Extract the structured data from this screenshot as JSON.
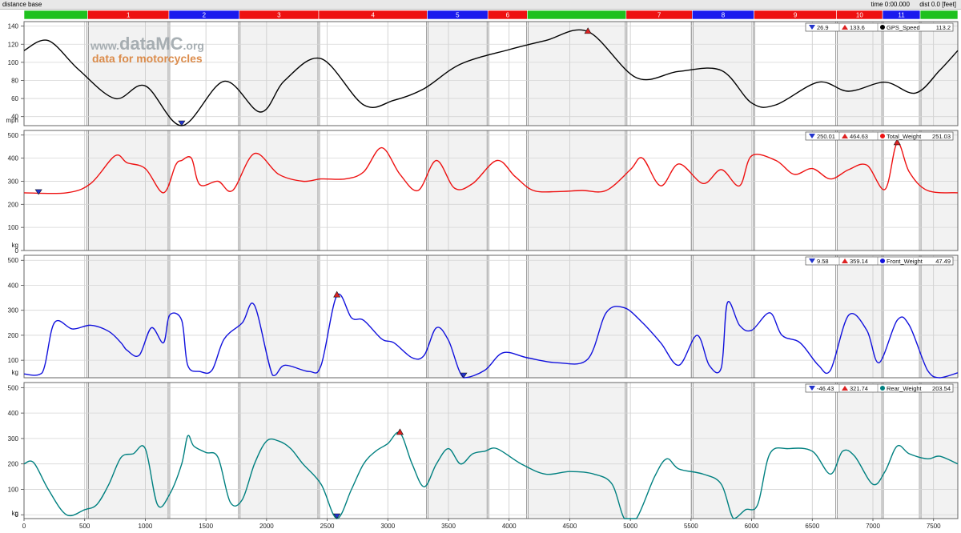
{
  "header": {
    "title": "distance base",
    "time_readout": "time 0:00.000",
    "dist_readout": "dist 0.0 [feet]"
  },
  "watermark": {
    "line1_prefix": "www.",
    "line1_main": "dataMC",
    "line1_suffix": ".org",
    "line2": "data for motorcycles"
  },
  "segments": [
    {
      "label": "",
      "start": 0,
      "end": 525,
      "color": "#1ec11e"
    },
    {
      "label": "1",
      "start": 525,
      "end": 1195,
      "color": "#ee1111"
    },
    {
      "label": "2",
      "start": 1195,
      "end": 1775,
      "color": "#1a1aee"
    },
    {
      "label": "3",
      "start": 1775,
      "end": 2430,
      "color": "#ee1111"
    },
    {
      "label": "4",
      "start": 2430,
      "end": 3325,
      "color": "#ee1111"
    },
    {
      "label": "5",
      "start": 3325,
      "end": 3825,
      "color": "#1a1aee"
    },
    {
      "label": "6",
      "start": 3825,
      "end": 4150,
      "color": "#ee1111"
    },
    {
      "label": "",
      "start": 4150,
      "end": 4965,
      "color": "#1ec11e"
    },
    {
      "label": "7",
      "start": 4965,
      "end": 5510,
      "color": "#ee1111"
    },
    {
      "label": "8",
      "start": 5510,
      "end": 6020,
      "color": "#1a1aee"
    },
    {
      "label": "9",
      "start": 6020,
      "end": 6700,
      "color": "#ee1111"
    },
    {
      "label": "10",
      "start": 6700,
      "end": 7080,
      "color": "#ee1111"
    },
    {
      "label": "11",
      "start": 7080,
      "end": 7390,
      "color": "#1a1aee"
    },
    {
      "label": "",
      "start": 7390,
      "end": 7700,
      "color": "#1ec11e"
    }
  ],
  "chart_data": [
    {
      "type": "line",
      "name": "GPS_Speed",
      "unit": "mph",
      "color": "#000000",
      "ylim": [
        30,
        145
      ],
      "yticks": [
        40,
        60,
        80,
        100,
        120,
        140
      ],
      "legend": {
        "min": "26.9",
        "max": "133.6",
        "current": "113.2"
      },
      "min_marker": {
        "x": 1300,
        "y": 26.9
      },
      "max_marker": {
        "x": 4650,
        "y": 133.6
      },
      "x": [
        0,
        200,
        450,
        750,
        1000,
        1300,
        1650,
        1950,
        2150,
        2450,
        2800,
        3050,
        3300,
        3600,
        4000,
        4300,
        4650,
        5050,
        5400,
        5750,
        6000,
        6200,
        6550,
        6800,
        7100,
        7350,
        7550,
        7700
      ],
      "y": [
        113,
        124,
        92,
        60,
        74,
        27,
        79,
        45,
        80,
        104,
        53,
        58,
        71,
        98,
        114,
        124,
        134,
        83,
        90,
        91,
        55,
        53,
        78,
        68,
        78,
        66,
        91,
        113
      ]
    },
    {
      "type": "line",
      "name": "Total_Weight",
      "unit": "kg",
      "color": "#ee1111",
      "ylim": [
        0,
        520
      ],
      "yticks": [
        0,
        100,
        200,
        300,
        400,
        500
      ],
      "legend": {
        "min": "250.01",
        "max": "464.63",
        "current": "251.03"
      },
      "min_marker": {
        "x": 120,
        "y": 250.01
      },
      "max_marker": {
        "x": 7200,
        "y": 464.63
      },
      "x": [
        0,
        350,
        550,
        750,
        850,
        1000,
        1150,
        1250,
        1300,
        1380,
        1450,
        1600,
        1720,
        1900,
        2100,
        2300,
        2450,
        2650,
        2800,
        2950,
        3100,
        3250,
        3400,
        3550,
        3700,
        3900,
        4050,
        4200,
        4400,
        4600,
        4800,
        5000,
        5100,
        5250,
        5400,
        5600,
        5750,
        5900,
        6000,
        6200,
        6350,
        6500,
        6650,
        6800,
        6950,
        7100,
        7200,
        7300,
        7450,
        7700
      ],
      "y": [
        250,
        250,
        290,
        410,
        380,
        355,
        250,
        370,
        390,
        400,
        285,
        300,
        260,
        420,
        330,
        300,
        310,
        310,
        340,
        445,
        330,
        260,
        390,
        270,
        290,
        390,
        320,
        260,
        255,
        260,
        260,
        350,
        400,
        280,
        375,
        290,
        350,
        280,
        410,
        390,
        330,
        355,
        310,
        350,
        370,
        265,
        465,
        340,
        260,
        250
      ]
    },
    {
      "type": "line",
      "name": "Front_Weight",
      "unit": "kg",
      "color": "#1111dd",
      "ylim": [
        30,
        520
      ],
      "yticks": [
        100,
        200,
        300,
        400,
        500
      ],
      "legend": {
        "min": "9.58",
        "max": "359.14",
        "current": "47.49"
      },
      "min_marker": {
        "x": 3625,
        "y": 9.58
      },
      "max_marker": {
        "x": 2580,
        "y": 359.14
      },
      "x": [
        0,
        150,
        250,
        400,
        550,
        700,
        800,
        850,
        950,
        1050,
        1150,
        1200,
        1300,
        1350,
        1450,
        1550,
        1650,
        1800,
        1900,
        2050,
        2150,
        2350,
        2450,
        2580,
        2700,
        2800,
        2950,
        3050,
        3200,
        3300,
        3400,
        3500,
        3625,
        3800,
        3950,
        4150,
        4400,
        4650,
        4800,
        4950,
        5100,
        5250,
        5400,
        5550,
        5650,
        5750,
        5800,
        5900,
        6000,
        6150,
        6250,
        6400,
        6550,
        6650,
        6800,
        6950,
        7050,
        7200,
        7300,
        7450,
        7550,
        7700
      ],
      "y": [
        45,
        50,
        250,
        225,
        240,
        215,
        170,
        140,
        120,
        230,
        170,
        280,
        260,
        80,
        55,
        60,
        185,
        250,
        320,
        40,
        80,
        55,
        80,
        359,
        270,
        260,
        185,
        170,
        110,
        120,
        230,
        180,
        10,
        60,
        130,
        110,
        90,
        105,
        290,
        310,
        250,
        170,
        80,
        200,
        80,
        70,
        330,
        240,
        220,
        290,
        200,
        170,
        80,
        60,
        280,
        220,
        90,
        260,
        240,
        60,
        30,
        50
      ]
    },
    {
      "type": "line",
      "name": "Rear_Weight",
      "unit": "kg",
      "color": "#008080",
      "ylim": [
        -15,
        520
      ],
      "yticks": [
        0,
        100,
        200,
        300,
        400,
        500
      ],
      "legend": {
        "min": "-46.43",
        "max": "321.74",
        "current": "203.54"
      },
      "min_marker": {
        "x": 2580,
        "y": -46.43
      },
      "max_marker": {
        "x": 3100,
        "y": 321.74
      },
      "x": [
        0,
        80,
        200,
        350,
        500,
        600,
        700,
        800,
        900,
        1000,
        1100,
        1200,
        1300,
        1350,
        1400,
        1500,
        1600,
        1700,
        1800,
        1900,
        2000,
        2100,
        2200,
        2300,
        2450,
        2580,
        2700,
        2800,
        2900,
        3000,
        3100,
        3200,
        3300,
        3400,
        3500,
        3600,
        3700,
        3800,
        3900,
        4100,
        4300,
        4500,
        4700,
        4850,
        4950,
        5050,
        5200,
        5300,
        5400,
        5600,
        5750,
        5850,
        5950,
        6050,
        6150,
        6300,
        6500,
        6650,
        6750,
        6850,
        7000,
        7100,
        7200,
        7300,
        7450,
        7550,
        7700
      ],
      "y": [
        200,
        205,
        100,
        0,
        20,
        40,
        120,
        225,
        240,
        260,
        40,
        80,
        200,
        310,
        270,
        245,
        225,
        50,
        60,
        200,
        290,
        290,
        260,
        200,
        120,
        -46,
        100,
        200,
        250,
        280,
        322,
        200,
        110,
        200,
        260,
        200,
        240,
        250,
        260,
        200,
        160,
        170,
        160,
        120,
        -30,
        -40,
        150,
        220,
        180,
        160,
        120,
        -40,
        20,
        40,
        240,
        260,
        250,
        160,
        250,
        230,
        120,
        170,
        270,
        240,
        220,
        230,
        200
      ]
    }
  ],
  "x_axis": {
    "ticks": [
      0,
      500,
      1000,
      1500,
      2000,
      2500,
      3000,
      3500,
      4000,
      4500,
      5000,
      5500,
      6000,
      6500,
      7000,
      7500
    ],
    "xlim": [
      0,
      7700
    ]
  }
}
